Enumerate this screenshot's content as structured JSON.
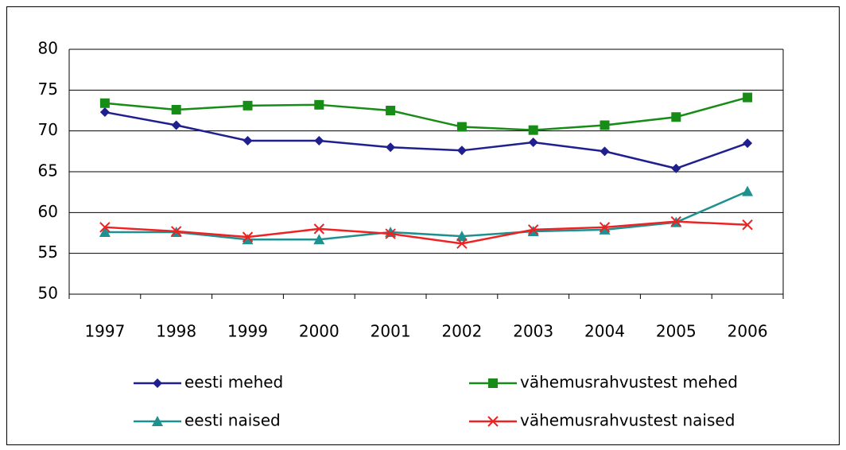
{
  "chart_data": {
    "type": "line",
    "categories": [
      "1997",
      "1998",
      "1999",
      "2000",
      "2001",
      "2002",
      "2003",
      "2004",
      "2005",
      "2006"
    ],
    "series": [
      {
        "name": "eesti mehed",
        "color": "#1f1f8f",
        "marker": "diamond",
        "values": [
          72.3,
          70.7,
          68.8,
          68.8,
          68.0,
          67.6,
          68.6,
          67.5,
          65.4,
          68.5
        ]
      },
      {
        "name": "vähemusrahvustest mehed",
        "color": "#178c17",
        "marker": "square",
        "values": [
          73.4,
          72.6,
          73.1,
          73.2,
          72.5,
          70.5,
          70.1,
          70.7,
          71.7,
          74.1
        ]
      },
      {
        "name": "eesti naised",
        "color": "#1f9090",
        "marker": "triangle",
        "values": [
          57.6,
          57.6,
          56.7,
          56.7,
          57.6,
          57.1,
          57.7,
          57.9,
          58.8,
          62.6
        ]
      },
      {
        "name": "vähemusrahvustest naised",
        "color": "#ee2222",
        "marker": "x",
        "values": [
          58.2,
          57.7,
          57.0,
          58.0,
          57.4,
          56.2,
          57.9,
          58.2,
          58.9,
          58.5
        ]
      }
    ],
    "ylim": [
      50,
      80
    ],
    "yticks": [
      50,
      55,
      60,
      65,
      70,
      75,
      80
    ],
    "grid": true,
    "legend": "bottom"
  }
}
